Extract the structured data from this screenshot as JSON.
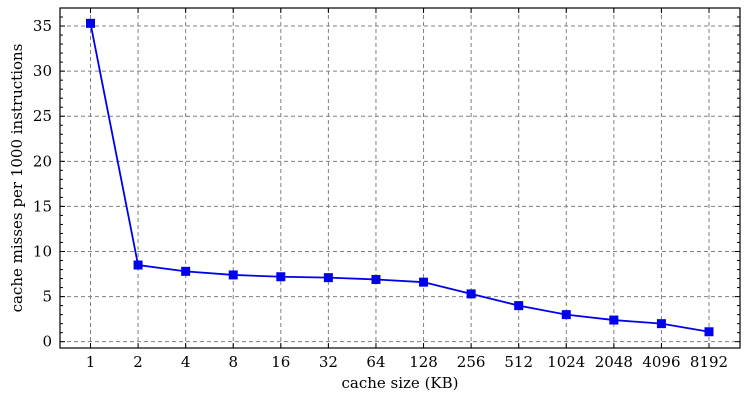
{
  "chart_data": {
    "type": "line",
    "title": "",
    "xlabel": "cache size (KB)",
    "ylabel": "cache misses per 1000 instructions",
    "categories": [
      "1",
      "2",
      "4",
      "8",
      "16",
      "32",
      "64",
      "128",
      "256",
      "512",
      "1024",
      "2048",
      "4096",
      "8192"
    ],
    "series": [
      {
        "values": [
          35.3,
          8.5,
          7.8,
          7.4,
          7.2,
          7.1,
          6.9,
          6.6,
          5.3,
          4.0,
          3.0,
          2.4,
          2.0,
          1.1
        ],
        "color": "#0000ee",
        "marker": "square"
      }
    ],
    "ylim": [
      -0.7,
      37
    ],
    "yticks": [
      0,
      5,
      10,
      15,
      20,
      25,
      30,
      35
    ],
    "grid": true,
    "legend": "none"
  }
}
